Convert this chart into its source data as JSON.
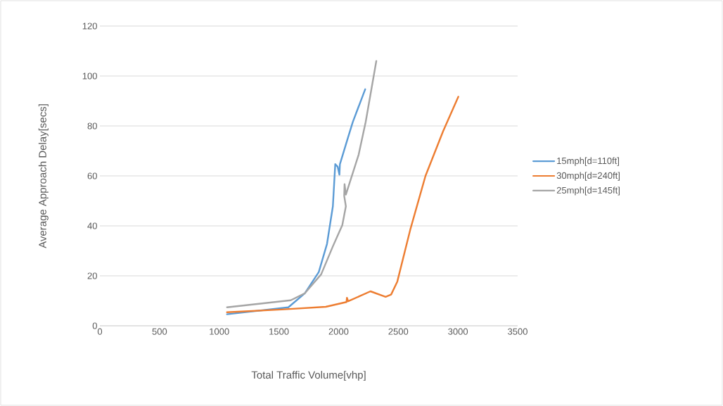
{
  "chart_data": {
    "type": "line",
    "xlabel": "Total Traffic Volume[vhp]",
    "ylabel": "Average Approach Delay[secs]",
    "xlim": [
      0,
      3500
    ],
    "xticks": [
      0,
      500,
      1000,
      1500,
      2000,
      2500,
      3000,
      3500
    ],
    "ylim": [
      0,
      120
    ],
    "yticks": [
      0,
      20,
      40,
      60,
      80,
      100,
      120
    ],
    "grid": "y",
    "legend": "right",
    "marker": "none",
    "line_style": "solid",
    "series": [
      {
        "name": "15mph[d=110ft]",
        "color": "#5b9bd5",
        "x": [
          1065,
          1579,
          1717,
          1834,
          1903,
          1952,
          1972,
          1992,
          2007,
          2011,
          2070,
          2119,
          2223
        ],
        "values": [
          4.6,
          7.4,
          13.0,
          21.5,
          32.8,
          47.8,
          64.7,
          63.7,
          60.5,
          64.7,
          74,
          81.6,
          94.7
        ]
      },
      {
        "name": "30mph[d=240ft]",
        "color": "#ed7d31",
        "x": [
          1065,
          1520,
          1893,
          2066,
          2070,
          2080,
          2267,
          2394,
          2440,
          2492,
          2600,
          2728,
          2875,
          3003
        ],
        "values": [
          5.4,
          6.5,
          7.6,
          9.5,
          11.2,
          9.8,
          13.8,
          11.6,
          12.5,
          17.7,
          38.4,
          60,
          77.8,
          91.7
        ]
      },
      {
        "name": "25mph[d=145ft]",
        "color": "#a5a5a5",
        "x": [
          1065,
          1599,
          1717,
          1854,
          1952,
          2031,
          2061,
          2047,
          2050,
          2061,
          2168,
          2227,
          2316
        ],
        "values": [
          7.4,
          10.2,
          13.0,
          20.6,
          31.8,
          40.3,
          47.8,
          52.0,
          56.7,
          52.5,
          68.5,
          81.6,
          106
        ]
      }
    ]
  }
}
